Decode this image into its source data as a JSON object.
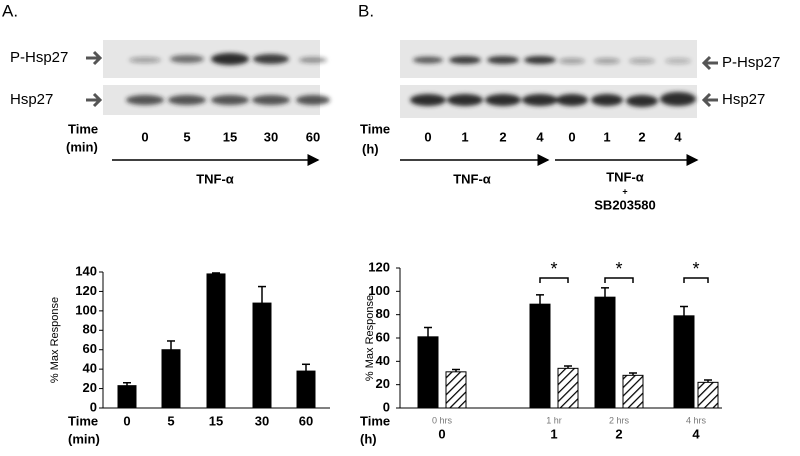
{
  "panels": [
    {
      "letter": "A.",
      "blot_labels": [
        "P-Hsp27",
        "Hsp27"
      ],
      "time_label": [
        "Time",
        "(min)"
      ],
      "lanes": [
        "0",
        "5",
        "15",
        "30",
        "60"
      ],
      "treatments": [
        "TNF-α"
      ]
    },
    {
      "letter": "B.",
      "blot_labels": [
        "P-Hsp27",
        "Hsp27"
      ],
      "time_label": [
        "Time",
        "(h)"
      ],
      "lanes": [
        "0",
        "1",
        "2",
        "4",
        "0",
        "1",
        "2",
        "4"
      ],
      "treatments": [
        "TNF-α",
        "TNF-α",
        "+",
        "SB203580"
      ]
    }
  ],
  "chart_data": [
    {
      "type": "bar",
      "y_label": "% Max Response",
      "x_label": [
        "Time",
        "(min)"
      ],
      "categories": [
        "0",
        "5",
        "15",
        "30",
        "60"
      ],
      "series": [
        {
          "color": "#000000",
          "values": [
            23,
            60,
            138,
            108,
            38
          ],
          "errors": [
            3,
            9,
            1,
            17,
            7
          ]
        }
      ],
      "ylim": [
        0,
        140
      ],
      "yticks": [
        0,
        20,
        40,
        60,
        80,
        100,
        120,
        140
      ]
    },
    {
      "type": "bar",
      "y_label": "% Max Response",
      "x_label": [
        "Time",
        "(h)"
      ],
      "categories": [
        "0",
        "1",
        "2",
        "4"
      ],
      "sub_categories": [
        "0 hrs",
        "1 hr",
        "2 hrs",
        "4 hrs"
      ],
      "series": [
        {
          "color": "#000000",
          "values": [
            61,
            89,
            95,
            79
          ],
          "errors": [
            8,
            8,
            8,
            8
          ]
        },
        {
          "color": "hatch",
          "values": [
            31,
            34,
            28,
            22
          ],
          "errors": [
            2,
            2,
            2,
            2
          ]
        }
      ],
      "significance": [
        "*",
        "*",
        "*"
      ],
      "ylim": [
        0,
        120
      ],
      "yticks": [
        0,
        20,
        40,
        60,
        80,
        100,
        120
      ]
    }
  ]
}
